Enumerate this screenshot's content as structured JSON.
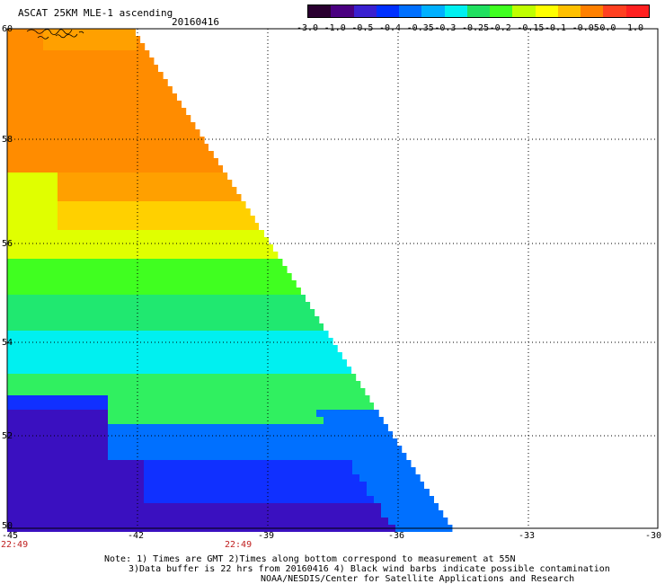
{
  "header": {
    "title": "ASCAT 25KM MLE-1 ascending",
    "date": "20160416"
  },
  "colorbar": {
    "labels": [
      "-3.0",
      "-1.0",
      "-0.5",
      "-0.4",
      "-0.35",
      "-0.3",
      "-0.25",
      "-0.2",
      "-0.15",
      "-0.1",
      "-0.05",
      "0.0",
      "1.0"
    ],
    "colors": [
      "#2a0030",
      "#4a0080",
      "#3a20d0",
      "#0030ff",
      "#0070ff",
      "#00b0ff",
      "#00f0f0",
      "#20e060",
      "#40ff20",
      "#c0ff00",
      "#ffff00",
      "#ffc000",
      "#ff8000",
      "#ff4020",
      "#ff2020"
    ]
  },
  "map": {
    "lat_labels": [
      "60",
      "58",
      "56",
      "54",
      "52",
      "50"
    ],
    "lon_labels": [
      "-45",
      "-42",
      "-39",
      "-36",
      "-33",
      "-30"
    ],
    "time_labels": [
      "22:49",
      "22:49"
    ]
  },
  "notes": [
    "Note: 1) Times are GMT 2)Times along bottom correspond to measurement at 55N",
    "3)Data buffer is 22 hrs from 20160416 4) Black wind barbs indicate possible contamination",
    "NOAA/NESDIS/Center for Satellite Applications and Research"
  ]
}
